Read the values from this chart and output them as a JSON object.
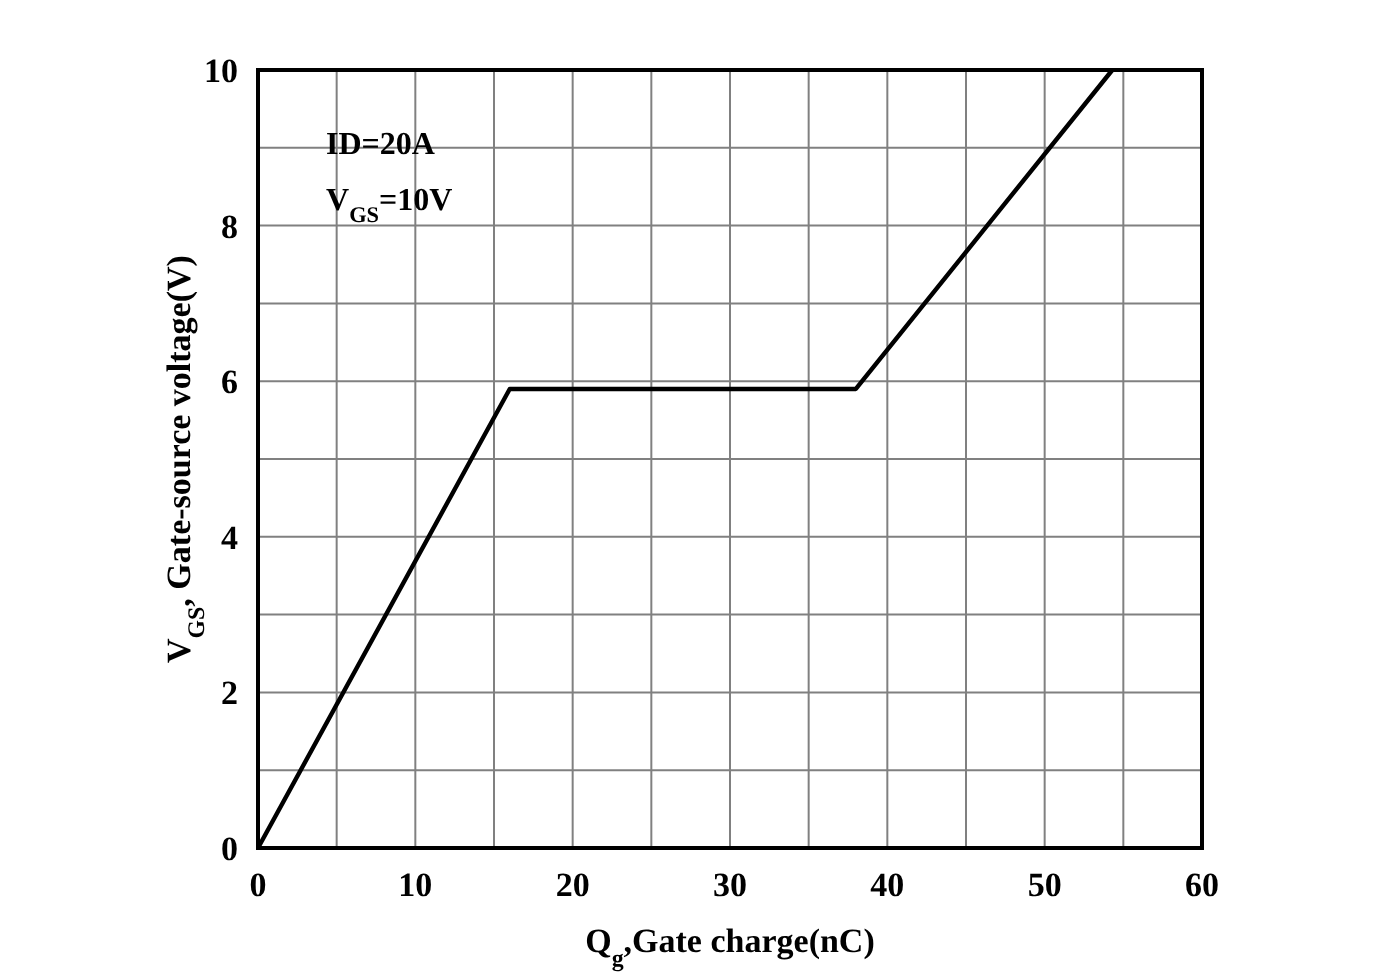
{
  "chart_data": {
    "type": "line",
    "xlabel": "Q$_{g}$,Gate charge(nC)",
    "ylabel": "V$_{GS}$, Gate-source voltage(V)",
    "x": [
      0,
      16,
      38,
      54.3
    ],
    "series": [
      {
        "color": "#000000",
        "values": [
          0,
          5.9,
          5.9,
          10
        ]
      }
    ],
    "xlim": [
      0,
      60
    ],
    "ylim": [
      0,
      10
    ],
    "xticks": [
      0,
      {
        "value": 5,
        "label": null
      },
      10,
      {
        "value": 15,
        "label": null
      },
      20,
      {
        "value": 25,
        "label": null
      },
      30,
      {
        "value": 35,
        "label": null
      },
      40,
      {
        "value": 45,
        "label": null
      },
      50,
      {
        "value": 55,
        "label": null
      },
      60
    ],
    "yticks": [
      0,
      {
        "value": 1,
        "label": null
      },
      2,
      {
        "value": 3,
        "label": null
      },
      4,
      {
        "value": 5,
        "label": null
      },
      6,
      {
        "value": 7,
        "label": null
      },
      8,
      {
        "value": 9,
        "label": null
      },
      10
    ],
    "grid": true,
    "marker": "none",
    "line_style": "solid",
    "annotations": [
      "ID=20A",
      "V$_{GS}$=10V"
    ]
  }
}
